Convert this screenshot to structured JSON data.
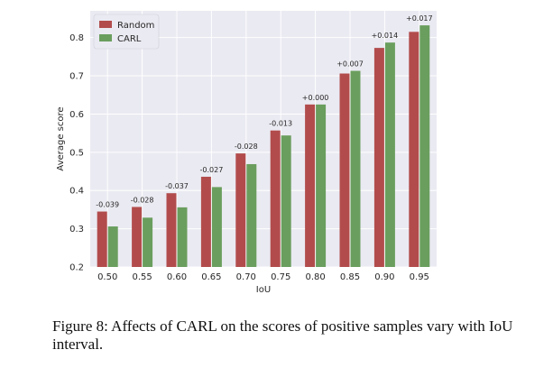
{
  "chart_data": {
    "type": "bar",
    "xlabel": "IoU",
    "ylabel": "Average score",
    "categories": [
      "0.50",
      "0.55",
      "0.60",
      "0.65",
      "0.70",
      "0.75",
      "0.80",
      "0.85",
      "0.90",
      "0.95"
    ],
    "series": [
      {
        "name": "Random",
        "color": "#b24c4c",
        "values": [
          0.345,
          0.357,
          0.393,
          0.436,
          0.497,
          0.557,
          0.625,
          0.706,
          0.773,
          0.815
        ]
      },
      {
        "name": "CARL",
        "color": "#6a9e5e",
        "values": [
          0.306,
          0.329,
          0.356,
          0.409,
          0.469,
          0.544,
          0.625,
          0.713,
          0.787,
          0.832
        ]
      }
    ],
    "annotations": [
      "-0.039",
      "-0.028",
      "-0.037",
      "-0.027",
      "-0.028",
      "-0.013",
      "+0.000",
      "+0.007",
      "+0.014",
      "+0.017"
    ],
    "ylim": [
      0.2,
      0.87
    ],
    "yticks": [
      0.2,
      0.3,
      0.4,
      0.5,
      0.6,
      0.7,
      0.8
    ],
    "grid": true,
    "legend_position": "top-left",
    "plot_background": "#eaeaf2"
  },
  "caption": "Figure 8: Affects of CARL on the scores of positive samples vary with IoU interval."
}
